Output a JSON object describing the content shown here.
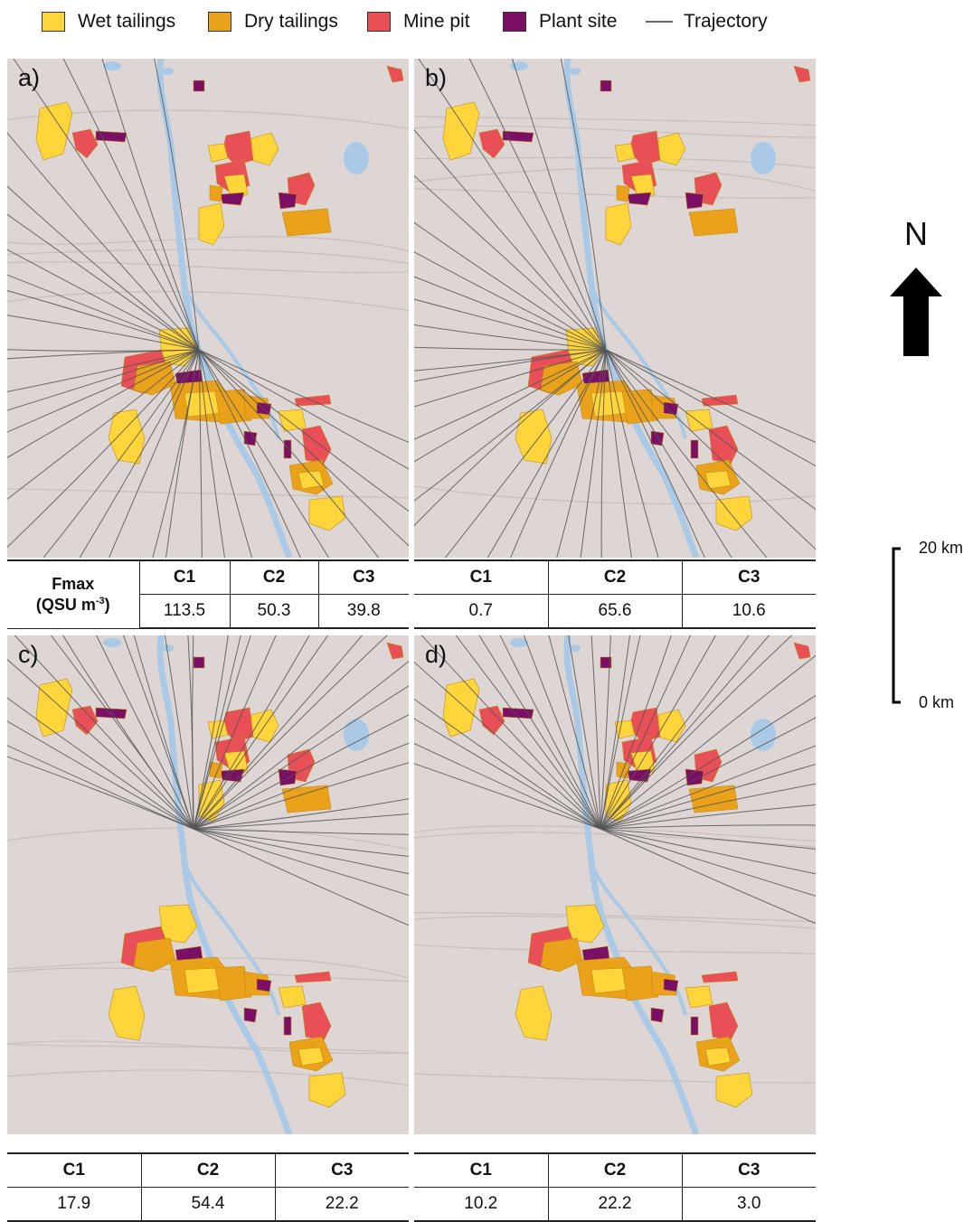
{
  "legend": {
    "items": [
      {
        "label": "Wet tailings",
        "color": "#fed53a"
      },
      {
        "label": "Dry tailings",
        "color": "#eaa21b"
      },
      {
        "label": "Mine pit",
        "color": "#e84f56"
      },
      {
        "label": "Plant site",
        "color": "#7b0f66"
      },
      {
        "label": "Trajectory",
        "color": "#666666"
      }
    ]
  },
  "panels": [
    {
      "label": "a)",
      "trajectory_origin": "south"
    },
    {
      "label": "b)",
      "trajectory_origin": "south"
    },
    {
      "label": "c)",
      "trajectory_origin": "north"
    },
    {
      "label": "d)",
      "trajectory_origin": "north"
    }
  ],
  "tables": {
    "row_label_line1": "Fmax",
    "row_label_line2": "(QSU m",
    "row_label_sup": "-3",
    "row_label_close": ")",
    "headers": [
      "C1",
      "C2",
      "C3"
    ],
    "values": {
      "a": [
        "113.5",
        "50.3",
        "39.8"
      ],
      "b": [
        "0.7",
        "65.6",
        "10.6"
      ],
      "c": [
        "17.9",
        "54.4",
        "22.2"
      ],
      "d": [
        "10.2",
        "22.2",
        "3.0"
      ]
    }
  },
  "north_arrow": {
    "letter": "N",
    "icon": "north-arrow-icon"
  },
  "scale_bar": {
    "top_label": "20 km",
    "bottom_label": "0 km"
  },
  "colors": {
    "terrain": "#ddd6d4",
    "river": "#a9c9e6",
    "trajectory": "#555555"
  }
}
